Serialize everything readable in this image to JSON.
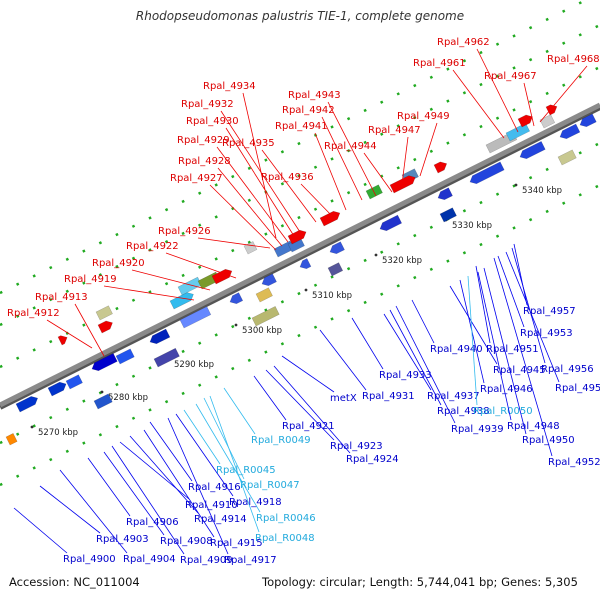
{
  "title": "Rhodopseudomonas palustris TIE-1, complete genome",
  "footer": {
    "accession": "Accession: NC_011004",
    "summary": "Topology: circular; Length: 5,744,041 bp; Genes: 5,305"
  },
  "colors": {
    "backbone": "#8a8a8a",
    "upper_label": "#dd0000",
    "lower_label": "#0000cc",
    "rna_label": "#22aadd"
  },
  "kbp_ticks": [
    "5270 kbp",
    "5280 kbp",
    "5290 kbp",
    "5300 kbp",
    "5310 kbp",
    "5320 kbp",
    "5330 kbp",
    "5340 kbp"
  ],
  "upper_labels": [
    "Rpal_4912",
    "Rpal_4913",
    "Rpal_4919",
    "Rpal_4920",
    "Rpal_4922",
    "Rpal_4926",
    "Rpal_4927",
    "Rpal_4928",
    "Rpal_4929",
    "Rpal_4930",
    "Rpal_4932",
    "Rpal_4934",
    "Rpal_4935",
    "Rpal_4936",
    "Rpal_4941",
    "Rpal_4942",
    "Rpal_4943",
    "Rpal_4944",
    "Rpal_4947",
    "Rpal_4949",
    "Rpal_4961",
    "Rpal_4962",
    "Rpal_4967",
    "Rpal_4968"
  ],
  "lower_labels": [
    "Rpal_4900",
    "Rpal_4903",
    "Rpal_4904",
    "Rpal_4906",
    "Rpal_4908",
    "Rpal_4909",
    "Rpal_4910",
    "Rpal_4914",
    "Rpal_4915",
    "Rpal_4916",
    "Rpal_4917",
    "Rpal_4918",
    "Rpal_R0045",
    "Rpal_R0046",
    "Rpal_R0047",
    "Rpal_R0048",
    "Rpal_R0049",
    "Rpal_4921",
    "Rpal_4923",
    "Rpal_4924",
    "metX",
    "Rpal_4931",
    "Rpal_4933",
    "Rpal_4937",
    "Rpal_4938",
    "Rpal_4939",
    "Rpal_4940",
    "Rpal_4945",
    "Rpal_4946",
    "Rpal_R0050",
    "Rpal_4948",
    "Rpal_4950",
    "Rpal_4951",
    "Rpal_4952",
    "Rpal_4953",
    "Rpal_4955",
    "Rpal_4956",
    "Rpal_4957"
  ]
}
